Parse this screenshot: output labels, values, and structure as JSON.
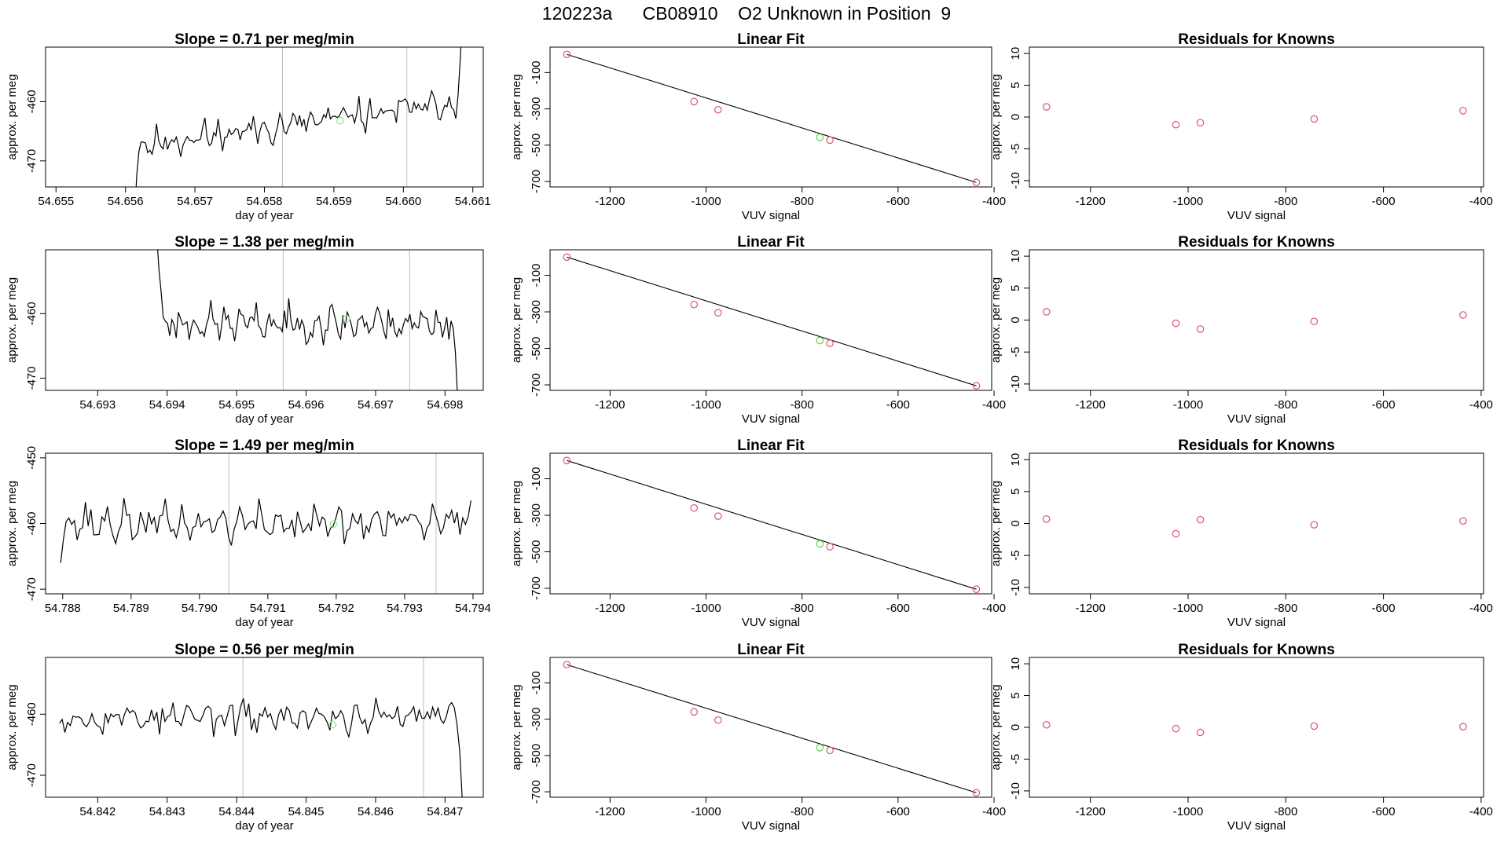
{
  "figure": {
    "main_title": "120223a      CB08910    O2 Unknown in Position  9"
  },
  "chart_data": [
    {
      "panel": "time-series",
      "row": 1,
      "type": "line",
      "title": "Slope =  0.71  per meg/min",
      "xlabel": "day of year",
      "ylabel": "approx. per meg",
      "xlim": [
        54.65485,
        54.66115
      ],
      "ylim": [
        -474.4,
        -450.8
      ],
      "xticks": [
        54.655,
        54.656,
        54.657,
        54.658,
        54.659,
        54.66,
        54.661
      ],
      "xtick_labels": [
        "54.655",
        "54.656",
        "54.657",
        "54.658",
        "54.659",
        "54.660",
        "54.661"
      ],
      "yticks": [
        -460,
        -470
      ],
      "ytick_labels": [
        "-460",
        "-470"
      ],
      "vlines": [
        54.65826,
        54.66005
      ],
      "series_start": 54.65613,
      "series_end": 54.66085,
      "series_n": 150,
      "series_base": -467.5,
      "series_trend": 7.5,
      "series_amp": 3.3,
      "seed": 11,
      "head_values": [
        -480,
        -472.5
      ],
      "tail_values": [
        -459,
        -453,
        -445
      ],
      "highlight": {
        "x": 54.65909,
        "y": -463.2
      }
    },
    {
      "panel": "time-series",
      "row": 2,
      "type": "line",
      "title": "Slope =  1.38  per meg/min",
      "xlabel": "day of year",
      "ylabel": "approx. per meg",
      "xlim": [
        54.69225,
        54.69855
      ],
      "ylim": [
        -471.9,
        -450.1
      ],
      "xticks": [
        54.693,
        54.694,
        54.695,
        54.696,
        54.697,
        54.698
      ],
      "xtick_labels": [
        "54.693",
        "54.694",
        "54.695",
        "54.696",
        "54.697",
        "54.698"
      ],
      "yticks": [
        -460,
        -470
      ],
      "ytick_labels": [
        "-460",
        "-470"
      ],
      "vlines": [
        54.69567,
        54.69749
      ],
      "series_start": 54.69385,
      "series_end": 54.69818,
      "series_n": 140,
      "series_base": -461.5,
      "series_trend": 0.0,
      "series_amp": 3.4,
      "seed": 23,
      "head_values": [
        -448,
        -453,
        -456.5
      ],
      "tail_values": [
        -466,
        -473
      ],
      "highlight": {
        "x": 54.69658,
        "y": -460.8
      }
    },
    {
      "panel": "time-series",
      "row": 3,
      "type": "line",
      "title": "Slope =  1.49  per meg/min",
      "xlabel": "day of year",
      "ylabel": "approx. per meg",
      "xlim": [
        54.78775,
        54.79415
      ],
      "ylim": [
        -470.7,
        -449.3
      ],
      "xticks": [
        54.788,
        54.789,
        54.79,
        54.791,
        54.792,
        54.793,
        54.794
      ],
      "xtick_labels": [
        "54.788",
        "54.789",
        "54.790",
        "54.791",
        "54.792",
        "54.793",
        "54.794"
      ],
      "yticks": [
        -450,
        -460,
        -470
      ],
      "ytick_labels": [
        "-450",
        "-460",
        "-470"
      ],
      "vlines": [
        54.79043,
        54.79346
      ],
      "series_start": 54.78797,
      "series_end": 54.79397,
      "series_n": 150,
      "series_base": -460.0,
      "series_trend": 0.0,
      "series_amp": 3.6,
      "seed": 37,
      "head_values": [
        -466
      ],
      "tail_values": [
        -456.5
      ],
      "highlight": {
        "x": 54.79196,
        "y": -460.1
      }
    },
    {
      "panel": "time-series",
      "row": 4,
      "type": "line",
      "title": "Slope =  0.56  per meg/min",
      "xlabel": "day of year",
      "ylabel": "approx. per meg",
      "xlim": [
        54.84125,
        54.84755
      ],
      "ylim": [
        -473.6,
        -450.7
      ],
      "xticks": [
        54.842,
        54.843,
        54.844,
        54.845,
        54.846,
        54.847
      ],
      "xtick_labels": [
        "54.842",
        "54.843",
        "54.844",
        "54.845",
        "54.846",
        "54.847"
      ],
      "yticks": [
        -460,
        -470
      ],
      "ytick_labels": [
        "-460",
        "-470"
      ],
      "vlines": [
        54.84409,
        54.84669
      ],
      "series_start": 54.84145,
      "series_end": 54.84725,
      "series_n": 150,
      "series_base": -460.5,
      "series_trend": 0.0,
      "series_amp": 3.2,
      "seed": 53,
      "head_values": [
        -461.5
      ],
      "tail_values": [
        -466,
        -474.5
      ],
      "highlight": {
        "x": 54.84538,
        "y": -461.7
      }
    },
    {
      "panel": "linear-fit",
      "row": 1,
      "type": "scatter",
      "title": "Linear Fit",
      "xlabel": "VUV signal",
      "ylabel": "approx. per meg",
      "xlim": [
        -1325,
        -405
      ],
      "ylim": [
        -730,
        40
      ],
      "xticks": [
        -1200,
        -1000,
        -800,
        -600,
        -400
      ],
      "xtick_labels": [
        "-1200",
        "-1000",
        "-800",
        "-600",
        "-400"
      ],
      "yticks": [
        -100,
        -300,
        -500,
        -700
      ],
      "ytick_labels": [
        "-100",
        "-300",
        "-500",
        "-700"
      ],
      "knowns": [
        {
          "x": -1290,
          "y": 0
        },
        {
          "x": -1025,
          "y": -260
        },
        {
          "x": -975,
          "y": -305
        },
        {
          "x": -742,
          "y": -472
        },
        {
          "x": -437,
          "y": -705
        }
      ],
      "unknown": {
        "x": -763,
        "y": -457
      },
      "fit": {
        "x1": -1290,
        "y1": 0,
        "x2": -437,
        "y2": -705
      }
    },
    {
      "panel": "linear-fit",
      "row": 2,
      "type": "scatter",
      "title": "Linear Fit",
      "xlabel": "VUV signal",
      "ylabel": "approx. per meg",
      "xlim": [
        -1325,
        -405
      ],
      "ylim": [
        -730,
        40
      ],
      "xticks": [
        -1200,
        -1000,
        -800,
        -600,
        -400
      ],
      "xtick_labels": [
        "-1200",
        "-1000",
        "-800",
        "-600",
        "-400"
      ],
      "yticks": [
        -100,
        -300,
        -500,
        -700
      ],
      "ytick_labels": [
        "-100",
        "-300",
        "-500",
        "-700"
      ],
      "knowns": [
        {
          "x": -1290,
          "y": 0
        },
        {
          "x": -1025,
          "y": -260
        },
        {
          "x": -975,
          "y": -305
        },
        {
          "x": -742,
          "y": -472
        },
        {
          "x": -437,
          "y": -705
        }
      ],
      "unknown": {
        "x": -763,
        "y": -457
      },
      "fit": {
        "x1": -1290,
        "y1": 0,
        "x2": -437,
        "y2": -705
      }
    },
    {
      "panel": "linear-fit",
      "row": 3,
      "type": "scatter",
      "title": "Linear Fit",
      "xlabel": "VUV signal",
      "ylabel": "approx. per meg",
      "xlim": [
        -1325,
        -405
      ],
      "ylim": [
        -730,
        40
      ],
      "xticks": [
        -1200,
        -1000,
        -800,
        -600,
        -400
      ],
      "xtick_labels": [
        "-1200",
        "-1000",
        "-800",
        "-600",
        "-400"
      ],
      "yticks": [
        -100,
        -300,
        -500,
        -700
      ],
      "ytick_labels": [
        "-100",
        "-300",
        "-500",
        "-700"
      ],
      "knowns": [
        {
          "x": -1290,
          "y": 0
        },
        {
          "x": -1025,
          "y": -260
        },
        {
          "x": -975,
          "y": -305
        },
        {
          "x": -742,
          "y": -472
        },
        {
          "x": -437,
          "y": -705
        }
      ],
      "unknown": {
        "x": -763,
        "y": -457
      },
      "fit": {
        "x1": -1290,
        "y1": 0,
        "x2": -437,
        "y2": -705
      }
    },
    {
      "panel": "linear-fit",
      "row": 4,
      "type": "scatter",
      "title": "Linear Fit",
      "xlabel": "VUV signal",
      "ylabel": "approx. per meg",
      "xlim": [
        -1325,
        -405
      ],
      "ylim": [
        -730,
        40
      ],
      "xticks": [
        -1200,
        -1000,
        -800,
        -600,
        -400
      ],
      "xtick_labels": [
        "-1200",
        "-1000",
        "-800",
        "-600",
        "-400"
      ],
      "yticks": [
        -100,
        -300,
        -500,
        -700
      ],
      "ytick_labels": [
        "-100",
        "-300",
        "-500",
        "-700"
      ],
      "knowns": [
        {
          "x": -1290,
          "y": 0
        },
        {
          "x": -1025,
          "y": -260
        },
        {
          "x": -975,
          "y": -305
        },
        {
          "x": -742,
          "y": -472
        },
        {
          "x": -437,
          "y": -705
        }
      ],
      "unknown": {
        "x": -763,
        "y": -457
      },
      "fit": {
        "x1": -1290,
        "y1": 0,
        "x2": -437,
        "y2": -705
      }
    },
    {
      "panel": "residuals",
      "row": 1,
      "type": "scatter",
      "title": "Residuals for Knowns",
      "xlabel": "VUV signal",
      "ylabel": "approx. per meg",
      "xlim": [
        -1325,
        -395
      ],
      "ylim": [
        -11,
        11
      ],
      "xticks": [
        -1200,
        -1000,
        -800,
        -600,
        -400
      ],
      "xtick_labels": [
        "-1200",
        "-1000",
        "-800",
        "-600",
        "-400"
      ],
      "yticks": [
        10,
        5,
        0,
        -5,
        -10
      ],
      "ytick_labels": [
        "10",
        "5",
        "0",
        "-5",
        "-10"
      ],
      "points": [
        {
          "x": -1290,
          "y": 1.6
        },
        {
          "x": -1025,
          "y": -1.2
        },
        {
          "x": -975,
          "y": -0.9
        },
        {
          "x": -742,
          "y": -0.3
        },
        {
          "x": -437,
          "y": 1.0
        }
      ]
    },
    {
      "panel": "residuals",
      "row": 2,
      "type": "scatter",
      "title": "Residuals for Knowns",
      "xlabel": "VUV signal",
      "ylabel": "approx. per meg",
      "xlim": [
        -1325,
        -395
      ],
      "ylim": [
        -11,
        11
      ],
      "xticks": [
        -1200,
        -1000,
        -800,
        -600,
        -400
      ],
      "xtick_labels": [
        "-1200",
        "-1000",
        "-800",
        "-600",
        "-400"
      ],
      "yticks": [
        10,
        5,
        0,
        -5,
        -10
      ],
      "ytick_labels": [
        "10",
        "5",
        "0",
        "-5",
        "-10"
      ],
      "points": [
        {
          "x": -1290,
          "y": 1.3
        },
        {
          "x": -1025,
          "y": -0.5
        },
        {
          "x": -975,
          "y": -1.4
        },
        {
          "x": -742,
          "y": -0.2
        },
        {
          "x": -437,
          "y": 0.8
        }
      ]
    },
    {
      "panel": "residuals",
      "row": 3,
      "type": "scatter",
      "title": "Residuals for Knowns",
      "xlabel": "VUV signal",
      "ylabel": "approx. per meg",
      "xlim": [
        -1325,
        -395
      ],
      "ylim": [
        -11,
        11
      ],
      "xticks": [
        -1200,
        -1000,
        -800,
        -600,
        -400
      ],
      "xtick_labels": [
        "-1200",
        "-1000",
        "-800",
        "-600",
        "-400"
      ],
      "yticks": [
        10,
        5,
        0,
        -5,
        -10
      ],
      "ytick_labels": [
        "10",
        "5",
        "0",
        "-5",
        "-10"
      ],
      "points": [
        {
          "x": -1290,
          "y": 0.7
        },
        {
          "x": -1025,
          "y": -1.6
        },
        {
          "x": -975,
          "y": 0.6
        },
        {
          "x": -742,
          "y": -0.2
        },
        {
          "x": -437,
          "y": 0.4
        }
      ]
    },
    {
      "panel": "residuals",
      "row": 4,
      "type": "scatter",
      "title": "Residuals for Knowns",
      "xlabel": "VUV signal",
      "ylabel": "approx. per meg",
      "xlim": [
        -1325,
        -395
      ],
      "ylim": [
        -11,
        11
      ],
      "xticks": [
        -1200,
        -1000,
        -800,
        -600,
        -400
      ],
      "xtick_labels": [
        "-1200",
        "-1000",
        "-800",
        "-600",
        "-400"
      ],
      "yticks": [
        10,
        5,
        0,
        -5,
        -10
      ],
      "ytick_labels": [
        "10",
        "5",
        "0",
        "-5",
        "-10"
      ],
      "points": [
        {
          "x": -1290,
          "y": 0.4
        },
        {
          "x": -1025,
          "y": -0.2
        },
        {
          "x": -975,
          "y": -0.8
        },
        {
          "x": -742,
          "y": 0.2
        },
        {
          "x": -437,
          "y": 0.1
        }
      ]
    }
  ],
  "colors": {
    "axis": "#000000",
    "line": "#000000",
    "vline": "#bebebe",
    "known_point": "#df536b",
    "unknown_point": "#61d04f",
    "unknown_point_ts": "#90ee90"
  }
}
